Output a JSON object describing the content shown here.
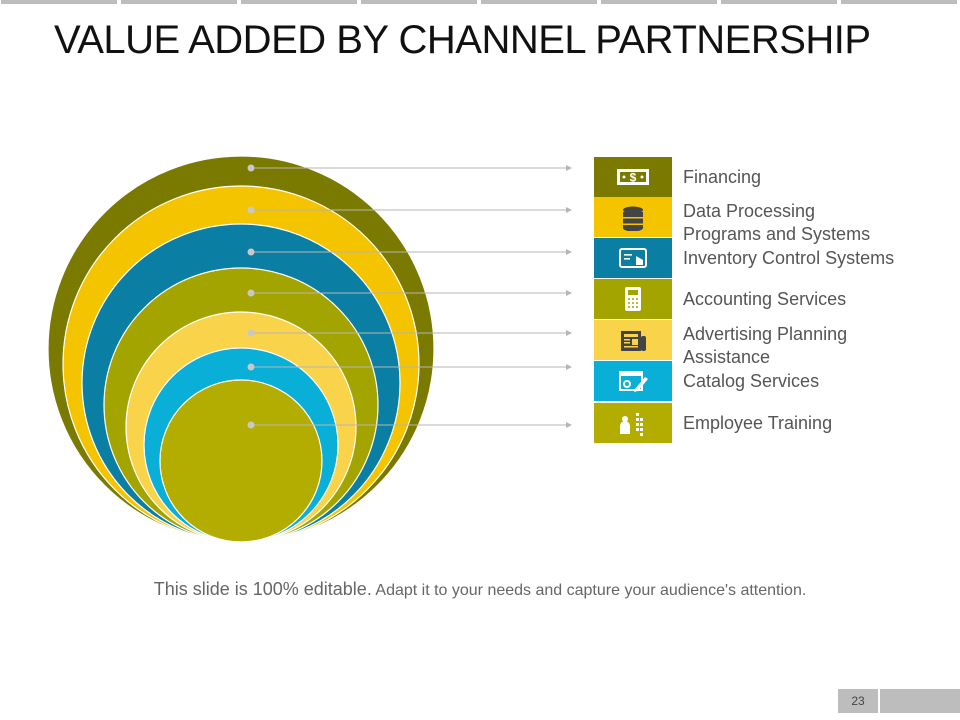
{
  "title": "VALUE ADDED BY CHANNEL PARTNERSHIP",
  "items": [
    {
      "label_lines": [
        "Financing"
      ],
      "icon": "money-icon",
      "color": "#7a7a00"
    },
    {
      "label_lines": [
        "Data Processing",
        "Programs and Systems"
      ],
      "icon": "database-icon",
      "color": "#f5c400"
    },
    {
      "label_lines": [
        "Inventory Control Systems"
      ],
      "icon": "touch-screen-icon",
      "color": "#0b7fa3"
    },
    {
      "label_lines": [
        "Accounting Services"
      ],
      "icon": "calculator-icon",
      "color": "#a4a400"
    },
    {
      "label_lines": [
        "Advertising Planning",
        "Assistance"
      ],
      "icon": "newspaper-icon",
      "color": "#f9d34a"
    },
    {
      "label_lines": [
        "Catalog Services"
      ],
      "icon": "design-edit-icon",
      "color": "#0aafd8"
    },
    {
      "label_lines": [
        "Employee Training"
      ],
      "icon": "training-presentation-icon",
      "color": "#b2ad00"
    }
  ],
  "footer": {
    "part1": "This slide is 100% editable.",
    "part2": " Adapt it to your needs and capture your audience's attention."
  },
  "page_number": "23"
}
